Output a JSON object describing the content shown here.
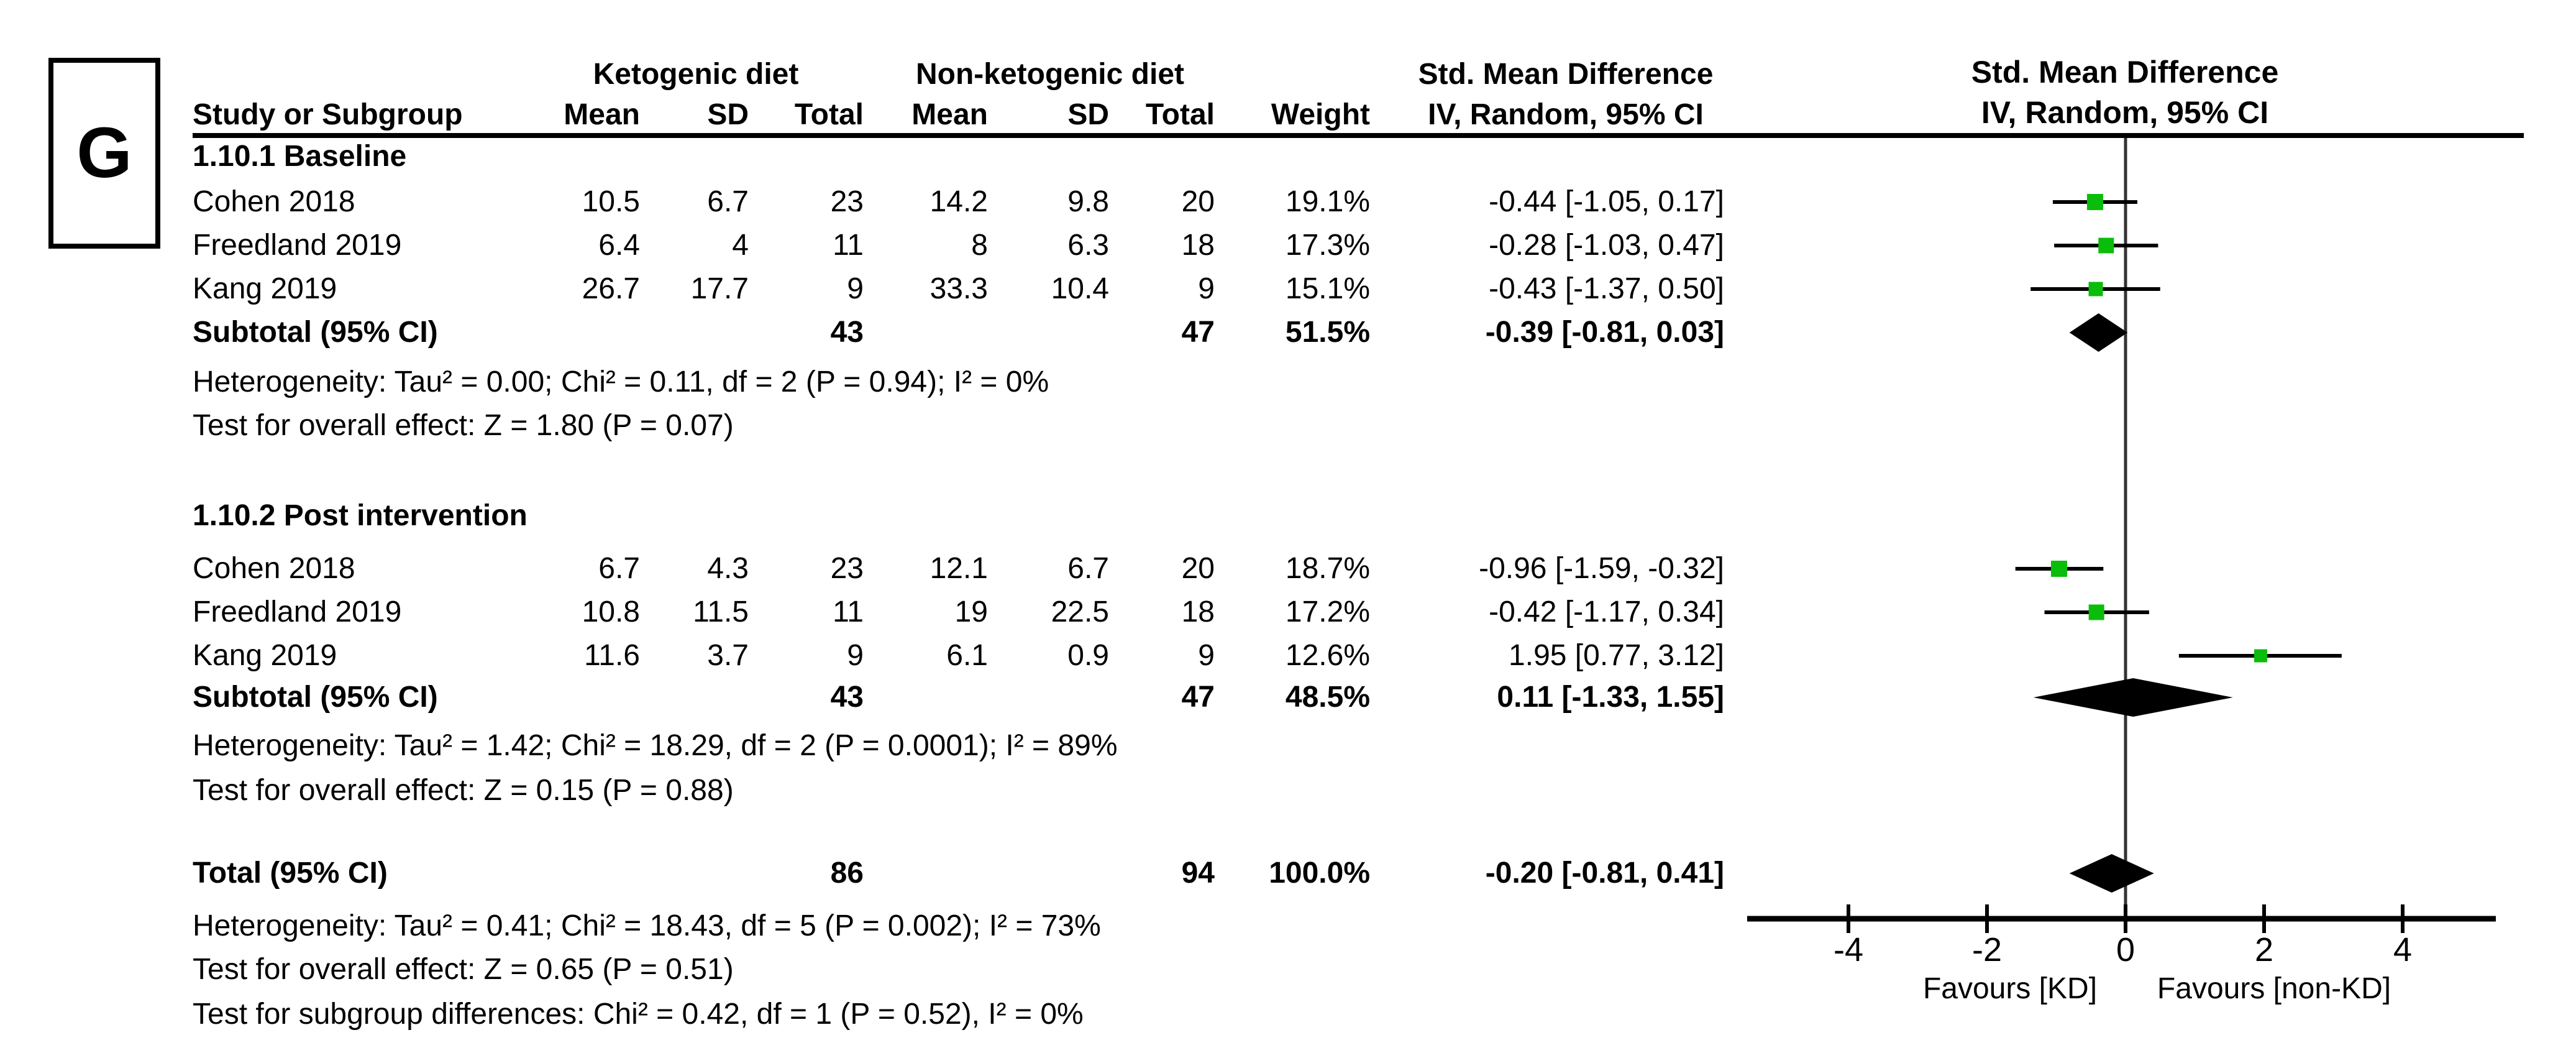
{
  "figure": {
    "panel_label": "G"
  },
  "table": {
    "group_headers": {
      "ketogenic": "Ketogenic diet",
      "non_ketogenic": "Non-ketogenic diet",
      "smd_text_col": "Std. Mean Difference",
      "smd_plot_col": "Std. Mean Difference"
    },
    "col_headers": {
      "study": "Study or Subgroup",
      "mean1": "Mean",
      "sd1": "SD",
      "total1": "Total",
      "mean2": "Mean",
      "sd2": "SD",
      "total2": "Total",
      "weight": "Weight",
      "ci_text_col": "IV, Random, 95% CI",
      "ci_plot_col": "IV, Random, 95% CI"
    },
    "sections": [
      {
        "label": "1.10.1 Baseline",
        "rows": [
          {
            "study": "Cohen 2018",
            "mean1": "10.5",
            "sd1": "6.7",
            "total1": "23",
            "mean2": "14.2",
            "sd2": "9.8",
            "total2": "20",
            "weight": "19.1%",
            "ci": "-0.44 [-1.05, 0.17]"
          },
          {
            "study": "Freedland 2019",
            "mean1": "6.4",
            "sd1": "4",
            "total1": "11",
            "mean2": "8",
            "sd2": "6.3",
            "total2": "18",
            "weight": "17.3%",
            "ci": "-0.28 [-1.03, 0.47]"
          },
          {
            "study": "Kang 2019",
            "mean1": "26.7",
            "sd1": "17.7",
            "total1": "9",
            "mean2": "33.3",
            "sd2": "10.4",
            "total2": "9",
            "weight": "15.1%",
            "ci": "-0.43 [-1.37, 0.50]"
          }
        ],
        "subtotal": {
          "label": "Subtotal (95% CI)",
          "total1": "43",
          "total2": "47",
          "weight": "51.5%",
          "ci": "-0.39 [-0.81, 0.03]"
        },
        "heterogeneity": "Heterogeneity: Tau² = 0.00; Chi² = 0.11, df = 2 (P = 0.94); I² = 0%",
        "overall_effect": "Test for overall effect: Z = 1.80 (P = 0.07)"
      },
      {
        "label": "1.10.2 Post intervention",
        "rows": [
          {
            "study": "Cohen 2018",
            "mean1": "6.7",
            "sd1": "4.3",
            "total1": "23",
            "mean2": "12.1",
            "sd2": "6.7",
            "total2": "20",
            "weight": "18.7%",
            "ci": "-0.96 [-1.59, -0.32]"
          },
          {
            "study": "Freedland 2019",
            "mean1": "10.8",
            "sd1": "11.5",
            "total1": "11",
            "mean2": "19",
            "sd2": "22.5",
            "total2": "18",
            "weight": "17.2%",
            "ci": "-0.42 [-1.17, 0.34]"
          },
          {
            "study": "Kang 2019",
            "mean1": "11.6",
            "sd1": "3.7",
            "total1": "9",
            "mean2": "6.1",
            "sd2": "0.9",
            "total2": "9",
            "weight": "12.6%",
            "ci": "1.95 [0.77, 3.12]"
          }
        ],
        "subtotal": {
          "label": "Subtotal (95% CI)",
          "total1": "43",
          "total2": "47",
          "weight": "48.5%",
          "ci": "0.11 [-1.33, 1.55]"
        },
        "heterogeneity": "Heterogeneity: Tau² = 1.42; Chi² = 18.29, df = 2 (P = 0.0001); I² = 89%",
        "overall_effect": "Test for overall effect: Z = 0.15 (P = 0.88)"
      }
    ],
    "total_row": {
      "label": "Total (95% CI)",
      "total1": "86",
      "total2": "94",
      "weight": "100.0%",
      "ci": "-0.20 [-0.81, 0.41]"
    },
    "footer": {
      "heterogeneity": "Heterogeneity: Tau² = 0.41; Chi² = 18.43, df = 5 (P = 0.002); I² = 73%",
      "overall_effect": "Test for overall effect: Z = 0.65 (P = 0.51)",
      "subgroup_differences": "Test for subgroup differences: Chi² = 0.42, df = 1 (P = 0.52), I² = 0%"
    }
  },
  "chart_data": {
    "type": "forest",
    "effect_measure": "Std. Mean Difference (IV, Random, 95% CI)",
    "axis": {
      "ticks": [
        -4,
        -2,
        0,
        2,
        4
      ],
      "min": -5.4,
      "max": 5.4,
      "favours_left": "Favours [KD]",
      "favours_right": "Favours [non-KD]"
    },
    "groups": [
      {
        "label": "1.10.1 Baseline",
        "studies": [
          {
            "name": "Cohen 2018",
            "est": -0.44,
            "lo": -1.05,
            "hi": 0.17,
            "weight": 19.1
          },
          {
            "name": "Freedland 2019",
            "est": -0.28,
            "lo": -1.03,
            "hi": 0.47,
            "weight": 17.3
          },
          {
            "name": "Kang 2019",
            "est": -0.43,
            "lo": -1.37,
            "hi": 0.5,
            "weight": 15.1
          }
        ],
        "subtotal": {
          "est": -0.39,
          "lo": -0.81,
          "hi": 0.03,
          "weight": 51.5
        }
      },
      {
        "label": "1.10.2 Post intervention",
        "studies": [
          {
            "name": "Cohen 2018",
            "est": -0.96,
            "lo": -1.59,
            "hi": -0.32,
            "weight": 18.7
          },
          {
            "name": "Freedland 2019",
            "est": -0.42,
            "lo": -1.17,
            "hi": 0.34,
            "weight": 17.2
          },
          {
            "name": "Kang 2019",
            "est": 1.95,
            "lo": 0.77,
            "hi": 3.12,
            "weight": 12.6
          }
        ],
        "subtotal": {
          "est": 0.11,
          "lo": -1.33,
          "hi": 1.55,
          "weight": 48.5
        }
      }
    ],
    "total": {
      "est": -0.2,
      "lo": -0.81,
      "hi": 0.41,
      "weight": 100.0
    },
    "colors": {
      "marker": "#0abd0a",
      "diamond": "#000000",
      "line": "#000000",
      "zero_line": "#333333"
    }
  }
}
